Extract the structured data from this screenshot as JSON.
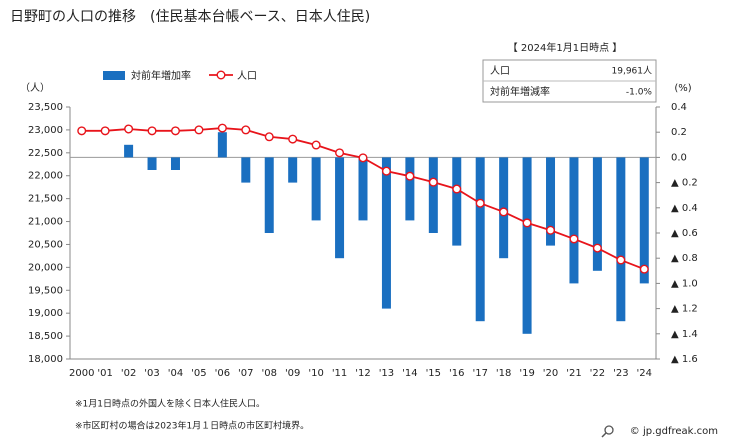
{
  "chart_data": {
    "type": "combo",
    "title": "日野町の人口の推移　(住民基本台帳ベース、日本人住民)",
    "y_label": "（人）",
    "y2_label": "(%)",
    "categories": [
      "2000",
      "'01",
      "'02",
      "'03",
      "'04",
      "'05",
      "'06",
      "'07",
      "'08",
      "'09",
      "'10",
      "'11",
      "'12",
      "'13",
      "'14",
      "'15",
      "'16",
      "'17",
      "'18",
      "'19",
      "'20",
      "'21",
      "'22",
      "'23",
      "'24"
    ],
    "series": [
      {
        "name": "対前年増加率",
        "type": "bar",
        "axis": "y2",
        "color": "#1a6fc0",
        "values": [
          null,
          0,
          0.1,
          -0.1,
          -0.1,
          0,
          0.2,
          -0.2,
          -0.6,
          -0.2,
          -0.5,
          -0.8,
          -0.5,
          -1.2,
          -0.5,
          -0.6,
          -0.7,
          -1.3,
          -0.8,
          -1.4,
          -0.7,
          -1.0,
          -0.9,
          -1.3,
          -1.0
        ]
      },
      {
        "name": "人口",
        "type": "line",
        "color": "#e8141b",
        "values": [
          22980,
          22980,
          23020,
          22980,
          22980,
          23000,
          23040,
          23000,
          22850,
          22800,
          22670,
          22500,
          22390,
          22100,
          21990,
          21860,
          21710,
          21400,
          21210,
          20970,
          20810,
          20620,
          20420,
          20160,
          19961
        ]
      }
    ],
    "ylim": [
      18000,
      23500
    ],
    "yticks": [
      {
        "value": 18000,
        "label": "18,000"
      },
      {
        "value": 18500,
        "label": "18,500"
      },
      {
        "value": 19000,
        "label": "19,000"
      },
      {
        "value": 19500,
        "label": "19,500"
      },
      {
        "value": 20000,
        "label": "20,000"
      },
      {
        "value": 20500,
        "label": "20,500"
      },
      {
        "value": 21000,
        "label": "21,000"
      },
      {
        "value": 21500,
        "label": "21,500"
      },
      {
        "value": 22000,
        "label": "22,000"
      },
      {
        "value": 22500,
        "label": "22,500"
      },
      {
        "value": 23000,
        "label": "23,000"
      },
      {
        "value": 23500,
        "label": "23,500"
      }
    ],
    "y2lim": [
      -1.6,
      0.4
    ],
    "y2ticks": [
      {
        "value": 0.4,
        "label": "0.4"
      },
      {
        "value": 0.2,
        "label": "0.2"
      },
      {
        "value": 0,
        "label": "0.0"
      },
      {
        "value": -0.2,
        "label": "▲ 0.2"
      },
      {
        "value": -0.4,
        "label": "▲ 0.4"
      },
      {
        "value": -0.6,
        "label": "▲ 0.6"
      },
      {
        "value": -0.8,
        "label": "▲ 0.8"
      },
      {
        "value": -1.0,
        "label": "▲ 1.0"
      },
      {
        "value": -1.2,
        "label": "▲ 1.2"
      },
      {
        "value": -1.4,
        "label": "▲ 1.4"
      },
      {
        "value": -1.6,
        "label": "▲ 1.6"
      }
    ],
    "info_box": {
      "title": "【 2024年1月1日時点 】",
      "rows": [
        [
          "人口",
          "19,961人"
        ],
        [
          "対前年増減率",
          "-1.0%"
        ]
      ]
    },
    "notes": [
      "※1月1日時点の外国人を除く日本人住民人口。",
      "※市区町村の場合は2023年1月１日時点の市区町村境界。"
    ],
    "source": "© jp.gdfreak.com"
  }
}
